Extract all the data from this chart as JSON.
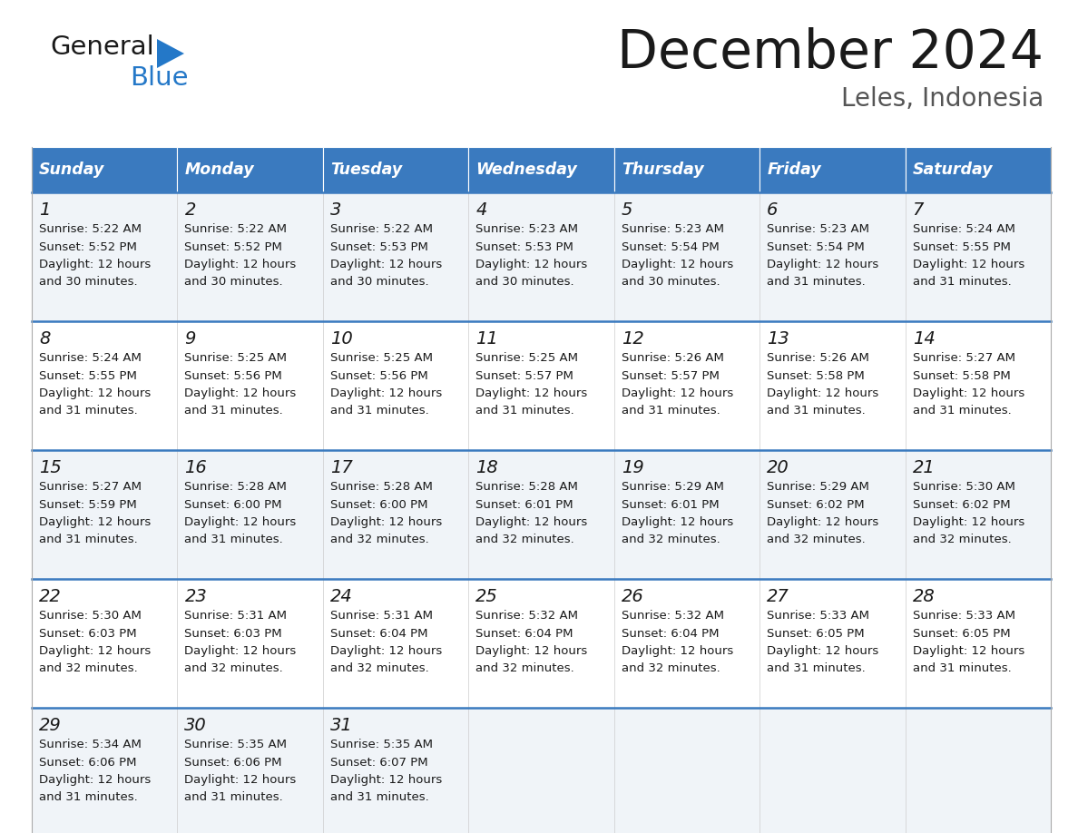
{
  "title": "December 2024",
  "subtitle": "Leles, Indonesia",
  "header_color": "#3a7abf",
  "header_text_color": "#ffffff",
  "cell_bg_even": "#f0f4f8",
  "cell_bg_odd": "#ffffff",
  "text_color": "#1a1a1a",
  "line_color": "#3a7abf",
  "border_color": "#aaaaaa",
  "day_headers": [
    "Sunday",
    "Monday",
    "Tuesday",
    "Wednesday",
    "Thursday",
    "Friday",
    "Saturday"
  ],
  "weeks": [
    [
      {
        "day": 1,
        "sunrise": "5:22 AM",
        "sunset": "5:52 PM",
        "daylight": "12 hours and 30 minutes."
      },
      {
        "day": 2,
        "sunrise": "5:22 AM",
        "sunset": "5:52 PM",
        "daylight": "12 hours and 30 minutes."
      },
      {
        "day": 3,
        "sunrise": "5:22 AM",
        "sunset": "5:53 PM",
        "daylight": "12 hours and 30 minutes."
      },
      {
        "day": 4,
        "sunrise": "5:23 AM",
        "sunset": "5:53 PM",
        "daylight": "12 hours and 30 minutes."
      },
      {
        "day": 5,
        "sunrise": "5:23 AM",
        "sunset": "5:54 PM",
        "daylight": "12 hours and 30 minutes."
      },
      {
        "day": 6,
        "sunrise": "5:23 AM",
        "sunset": "5:54 PM",
        "daylight": "12 hours and 31 minutes."
      },
      {
        "day": 7,
        "sunrise": "5:24 AM",
        "sunset": "5:55 PM",
        "daylight": "12 hours and 31 minutes."
      }
    ],
    [
      {
        "day": 8,
        "sunrise": "5:24 AM",
        "sunset": "5:55 PM",
        "daylight": "12 hours and 31 minutes."
      },
      {
        "day": 9,
        "sunrise": "5:25 AM",
        "sunset": "5:56 PM",
        "daylight": "12 hours and 31 minutes."
      },
      {
        "day": 10,
        "sunrise": "5:25 AM",
        "sunset": "5:56 PM",
        "daylight": "12 hours and 31 minutes."
      },
      {
        "day": 11,
        "sunrise": "5:25 AM",
        "sunset": "5:57 PM",
        "daylight": "12 hours and 31 minutes."
      },
      {
        "day": 12,
        "sunrise": "5:26 AM",
        "sunset": "5:57 PM",
        "daylight": "12 hours and 31 minutes."
      },
      {
        "day": 13,
        "sunrise": "5:26 AM",
        "sunset": "5:58 PM",
        "daylight": "12 hours and 31 minutes."
      },
      {
        "day": 14,
        "sunrise": "5:27 AM",
        "sunset": "5:58 PM",
        "daylight": "12 hours and 31 minutes."
      }
    ],
    [
      {
        "day": 15,
        "sunrise": "5:27 AM",
        "sunset": "5:59 PM",
        "daylight": "12 hours and 31 minutes."
      },
      {
        "day": 16,
        "sunrise": "5:28 AM",
        "sunset": "6:00 PM",
        "daylight": "12 hours and 31 minutes."
      },
      {
        "day": 17,
        "sunrise": "5:28 AM",
        "sunset": "6:00 PM",
        "daylight": "12 hours and 32 minutes."
      },
      {
        "day": 18,
        "sunrise": "5:28 AM",
        "sunset": "6:01 PM",
        "daylight": "12 hours and 32 minutes."
      },
      {
        "day": 19,
        "sunrise": "5:29 AM",
        "sunset": "6:01 PM",
        "daylight": "12 hours and 32 minutes."
      },
      {
        "day": 20,
        "sunrise": "5:29 AM",
        "sunset": "6:02 PM",
        "daylight": "12 hours and 32 minutes."
      },
      {
        "day": 21,
        "sunrise": "5:30 AM",
        "sunset": "6:02 PM",
        "daylight": "12 hours and 32 minutes."
      }
    ],
    [
      {
        "day": 22,
        "sunrise": "5:30 AM",
        "sunset": "6:03 PM",
        "daylight": "12 hours and 32 minutes."
      },
      {
        "day": 23,
        "sunrise": "5:31 AM",
        "sunset": "6:03 PM",
        "daylight": "12 hours and 32 minutes."
      },
      {
        "day": 24,
        "sunrise": "5:31 AM",
        "sunset": "6:04 PM",
        "daylight": "12 hours and 32 minutes."
      },
      {
        "day": 25,
        "sunrise": "5:32 AM",
        "sunset": "6:04 PM",
        "daylight": "12 hours and 32 minutes."
      },
      {
        "day": 26,
        "sunrise": "5:32 AM",
        "sunset": "6:04 PM",
        "daylight": "12 hours and 32 minutes."
      },
      {
        "day": 27,
        "sunrise": "5:33 AM",
        "sunset": "6:05 PM",
        "daylight": "12 hours and 31 minutes."
      },
      {
        "day": 28,
        "sunrise": "5:33 AM",
        "sunset": "6:05 PM",
        "daylight": "12 hours and 31 minutes."
      }
    ],
    [
      {
        "day": 29,
        "sunrise": "5:34 AM",
        "sunset": "6:06 PM",
        "daylight": "12 hours and 31 minutes."
      },
      {
        "day": 30,
        "sunrise": "5:35 AM",
        "sunset": "6:06 PM",
        "daylight": "12 hours and 31 minutes."
      },
      {
        "day": 31,
        "sunrise": "5:35 AM",
        "sunset": "6:07 PM",
        "daylight": "12 hours and 31 minutes."
      },
      null,
      null,
      null,
      null
    ]
  ],
  "logo_color1": "#1a1a1a",
  "logo_color2": "#2478c8",
  "logo_tri_color": "#2478c8"
}
